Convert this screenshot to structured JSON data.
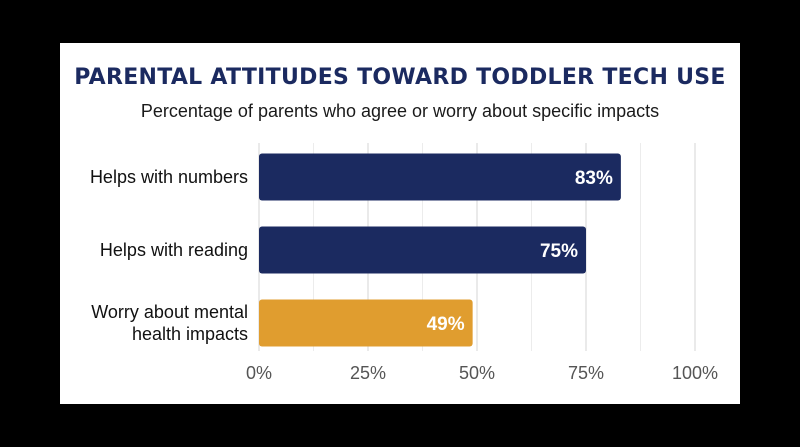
{
  "chart_data": {
    "type": "bar",
    "orientation": "horizontal",
    "title": "PARENTAL ATTITUDES TOWARD TODDLER TECH USE",
    "subtitle": "Percentage of parents who agree or worry about specific impacts",
    "categories": [
      [
        "Helps with numbers"
      ],
      [
        "Helps with reading"
      ],
      [
        "Worry about mental",
        "health impacts"
      ]
    ],
    "values": [
      83,
      75,
      49
    ],
    "value_labels": [
      "83%",
      "75%",
      "49%"
    ],
    "bar_colors": [
      "#1b2a60",
      "#1b2a60",
      "#e09d2f"
    ],
    "xlim": [
      0,
      100
    ],
    "x_ticks": [
      0,
      25,
      50,
      75,
      100
    ],
    "x_tick_labels": [
      "0%",
      "25%",
      "50%",
      "75%",
      "100%"
    ],
    "grid": true,
    "legend": "none"
  },
  "colors": {
    "title": "#1b2a60",
    "agree_bar": "#1b2a60",
    "worry_bar": "#e09d2f",
    "background": "#000000",
    "card": "#ffffff"
  }
}
